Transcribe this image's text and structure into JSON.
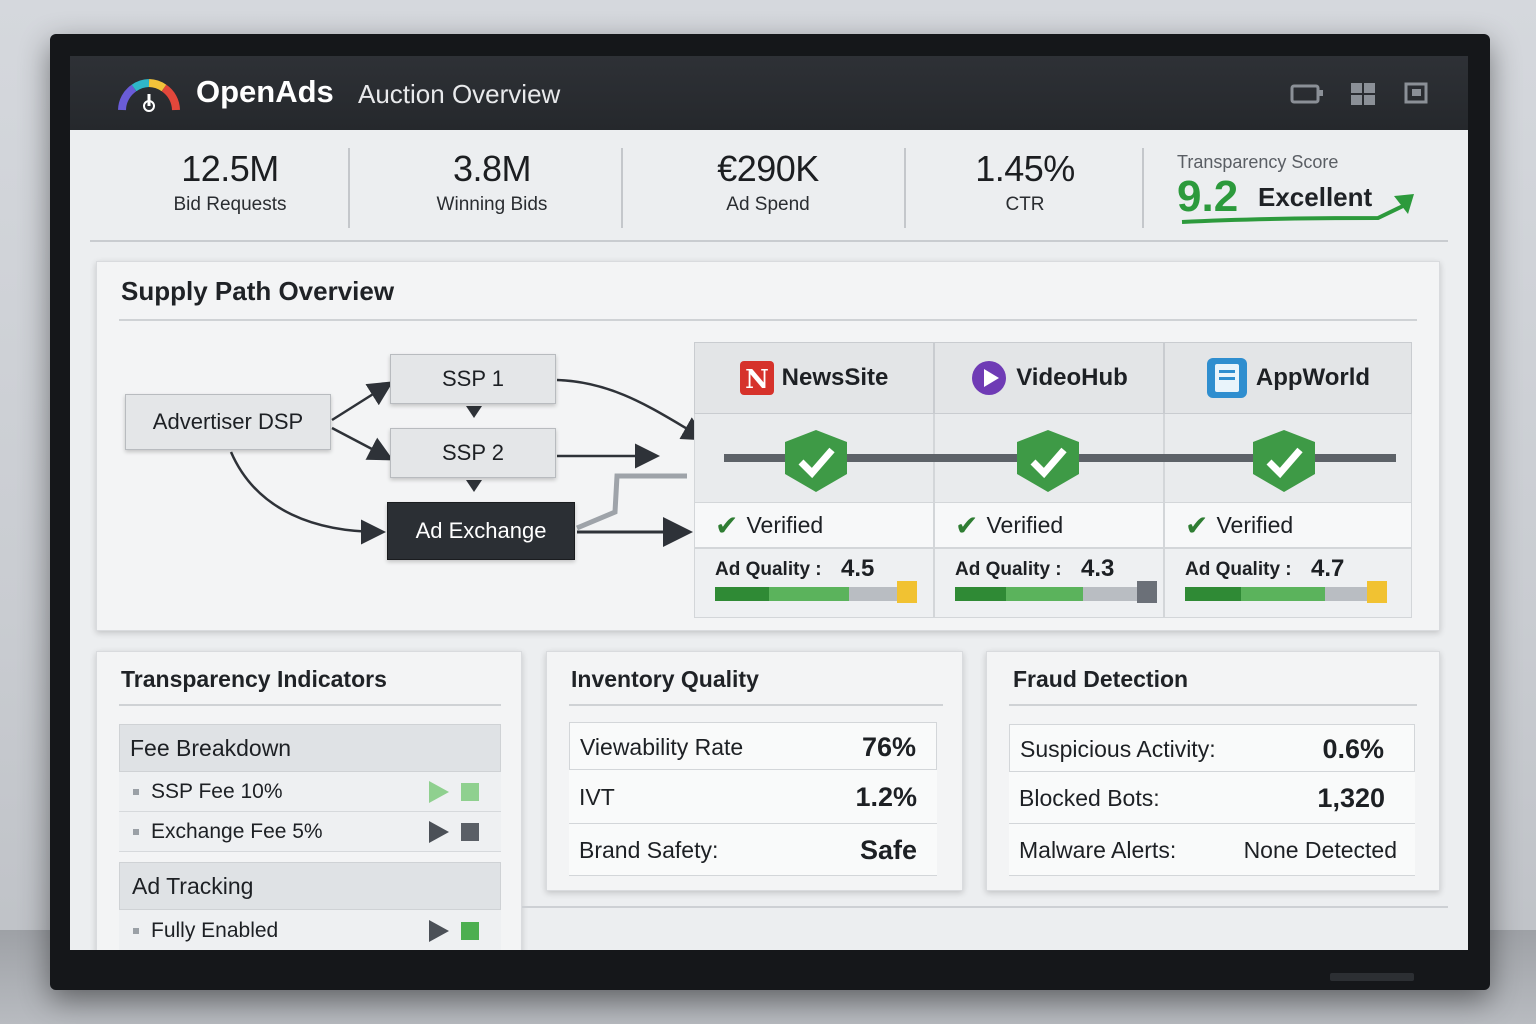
{
  "header": {
    "brand": "OpenAds",
    "subtitle": "Auction Overview",
    "icons": [
      "tv-icon",
      "grid-icon",
      "window-icon"
    ]
  },
  "kpis": [
    {
      "value": "12.5M",
      "label": "Bid Requests"
    },
    {
      "value": "3.8M",
      "label": "Winning Bids"
    },
    {
      "value": "€290K",
      "label": "Ad Spend"
    },
    {
      "value": "1.45%",
      "label": "CTR"
    }
  ],
  "transparency": {
    "label": "Transparency Score",
    "score": "9.2",
    "rating": "Excellent",
    "color": "#2c9a3c"
  },
  "supply": {
    "title": "Supply Path Overview",
    "nodes": {
      "dsp": "Advertiser DSP",
      "ssp1": "SSP 1",
      "ssp2": "SSP 2",
      "exchange": "Ad Exchange"
    },
    "publishers": [
      {
        "name": "NewsSite",
        "icon": "newssite-logo-icon",
        "status": "Verified",
        "quality_label": "Ad Quality :",
        "quality": "4.5",
        "quality_value": 4.5,
        "end_color": "#f1c232"
      },
      {
        "name": "VideoHub",
        "icon": "play-icon",
        "status": "Verified",
        "quality_label": "Ad Quality :",
        "quality": "4.3",
        "quality_value": 4.3,
        "end_color": "#6b7078"
      },
      {
        "name": "AppWorld",
        "icon": "app-icon",
        "status": "Verified",
        "quality_label": "Ad Quality :",
        "quality": "4.7",
        "quality_value": 4.7,
        "end_color": "#f1c232"
      }
    ]
  },
  "transparency_indicators": {
    "title": "Transparency Indicators",
    "fee_heading": "Fee Breakdown",
    "fees": [
      {
        "label": "SSP Fee 10%",
        "color": "#7cc47d"
      },
      {
        "label": "Exchange Fee 5%",
        "color": "#5a5f66"
      }
    ],
    "tracking_heading": "Ad Tracking",
    "tracking": {
      "label": "Fully Enabled",
      "color": "#4caf50"
    }
  },
  "inventory": {
    "title": "Inventory Quality",
    "rows": [
      {
        "label": "Viewability Rate",
        "value": "76%"
      },
      {
        "label": "IVT",
        "value": "1.2%"
      },
      {
        "label": "Brand Safety:",
        "value": "Safe"
      }
    ]
  },
  "fraud": {
    "title": "Fraud Detection",
    "rows": [
      {
        "label": "Suspicious Activity:",
        "value": "0.6%"
      },
      {
        "label": "Blocked Bots:",
        "value": "1,320"
      },
      {
        "label": "Malware Alerts:",
        "value": "None Detected"
      }
    ]
  }
}
